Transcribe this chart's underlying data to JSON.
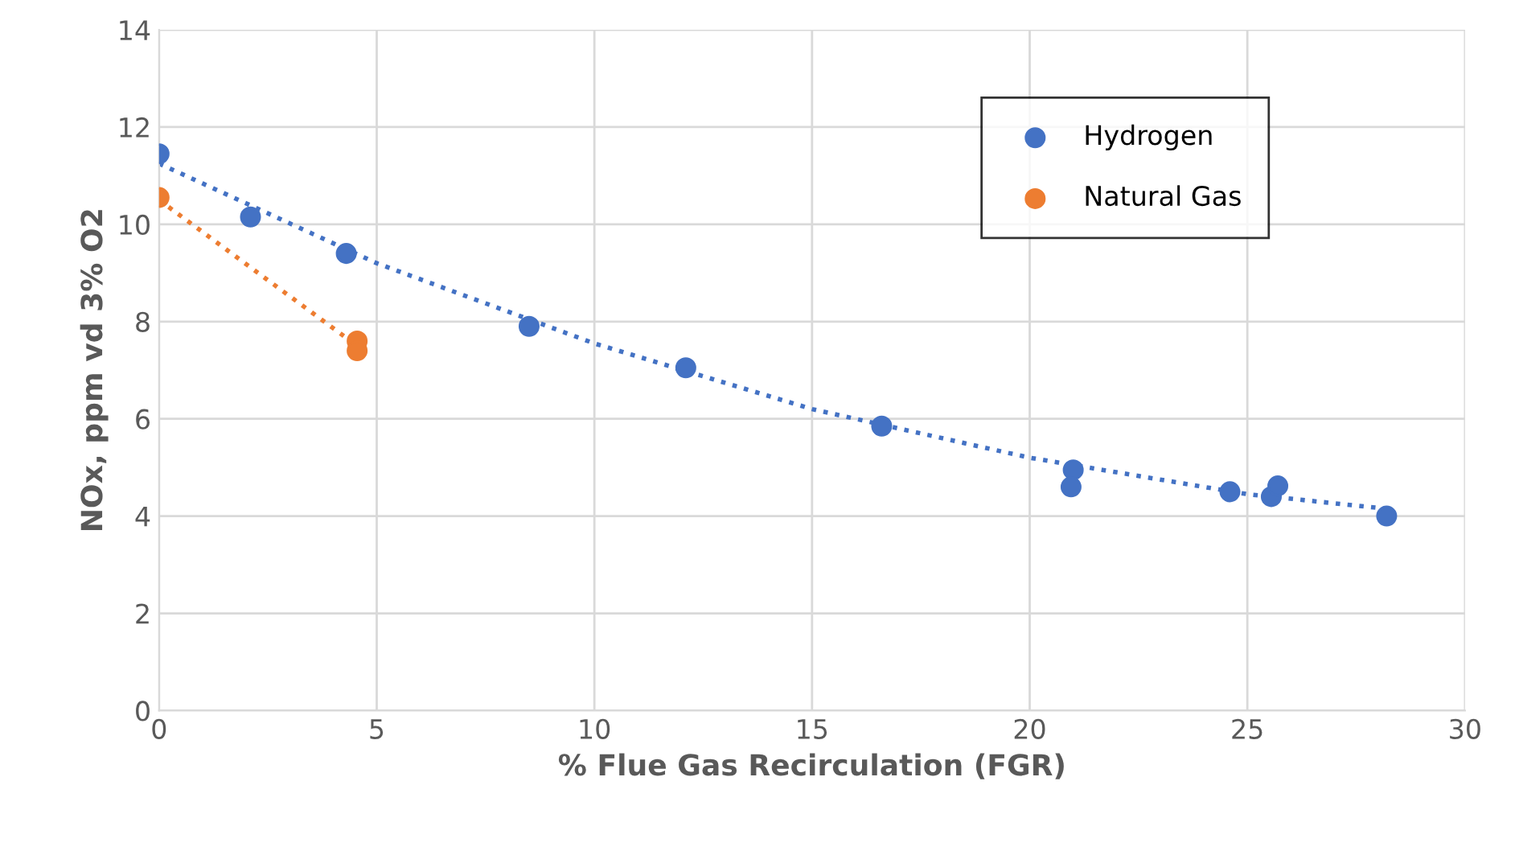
{
  "chart_data": {
    "type": "scatter",
    "xlabel": "% Flue Gas Recirculation (FGR)",
    "ylabel": "NOx, ppm vd 3% O2",
    "xlim": [
      0,
      30
    ],
    "xticks": [
      0,
      5,
      10,
      15,
      20,
      25,
      30
    ],
    "ylim": [
      0,
      14
    ],
    "yticks": [
      0,
      2,
      4,
      6,
      8,
      10,
      12,
      14
    ],
    "grid": true,
    "legend": "top right",
    "series": [
      {
        "name": "Hydrogen",
        "marker": "circle",
        "color": "#4472c4",
        "x": [
          0,
          2.1,
          4.3,
          8.5,
          12.1,
          16.6,
          21.0,
          20.95,
          24.6,
          25.55,
          25.7,
          28.2
        ],
        "values": [
          11.45,
          10.15,
          9.4,
          7.9,
          7.05,
          5.85,
          4.95,
          4.6,
          4.5,
          4.4,
          4.62,
          4.0
        ]
      },
      {
        "name": "Natural Gas",
        "marker": "circle",
        "color": "#ed7d31",
        "x": [
          0,
          4.55,
          4.55
        ],
        "values": [
          10.55,
          7.6,
          7.4
        ]
      },
      {
        "type": "line",
        "marker": "none",
        "line_style": "dotted",
        "color": "#4472c4",
        "x": [
          0,
          5,
          10,
          15,
          20,
          25,
          28.2
        ],
        "values": [
          11.25,
          9.2,
          7.55,
          6.2,
          5.2,
          4.45,
          4.15
        ]
      },
      {
        "type": "line",
        "marker": "none",
        "line_style": "dotted",
        "color": "#ed7d31",
        "x": [
          0,
          4.55
        ],
        "values": [
          10.5,
          7.5
        ]
      }
    ]
  }
}
